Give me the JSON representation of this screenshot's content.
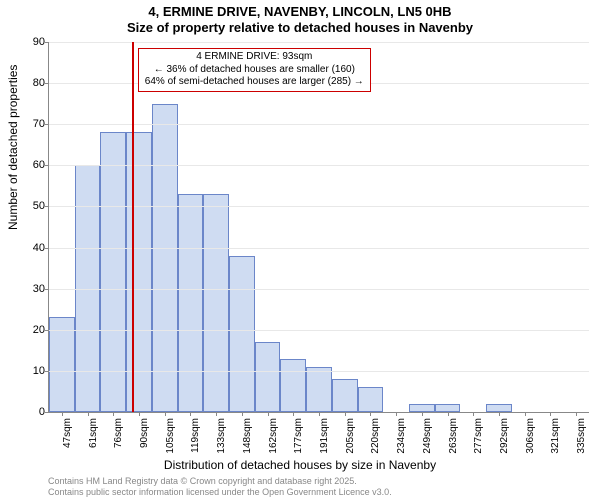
{
  "title_line1": "4, ERMINE DRIVE, NAVENBY, LINCOLN, LN5 0HB",
  "title_line2": "Size of property relative to detached houses in Navenby",
  "ylabel": "Number of detached properties",
  "xlabel": "Distribution of detached houses by size in Navenby",
  "credit_line1": "Contains HM Land Registry data © Crown copyright and database right 2025.",
  "credit_line2": "Contains public sector information licensed under the Open Government Licence v3.0.",
  "chart": {
    "type": "histogram",
    "y_max": 90,
    "y_ticks": [
      0,
      10,
      20,
      30,
      40,
      50,
      60,
      70,
      80,
      90
    ],
    "bar_fill": "#cfdcf2",
    "bar_stroke": "#6b86c9",
    "grid_color": "#e8e8e8",
    "axis_color": "#888888",
    "background_color": "#ffffff",
    "label_fontsize": 11,
    "categories": [
      "47sqm",
      "61sqm",
      "76sqm",
      "90sqm",
      "105sqm",
      "119sqm",
      "133sqm",
      "148sqm",
      "162sqm",
      "177sqm",
      "191sqm",
      "205sqm",
      "220sqm",
      "234sqm",
      "249sqm",
      "263sqm",
      "277sqm",
      "292sqm",
      "306sqm",
      "321sqm",
      "335sqm"
    ],
    "values": [
      23,
      60,
      68,
      68,
      75,
      53,
      53,
      38,
      17,
      13,
      11,
      8,
      6,
      0,
      2,
      2,
      0,
      2,
      0,
      0,
      0
    ],
    "marker_index": 3,
    "marker_color": "#cc0000",
    "annotation": {
      "line1": "4 ERMINE DRIVE: 93sqm",
      "line2": "← 36% of detached houses are smaller (160)",
      "line3": "64% of semi-detached houses are larger (285) →"
    }
  }
}
